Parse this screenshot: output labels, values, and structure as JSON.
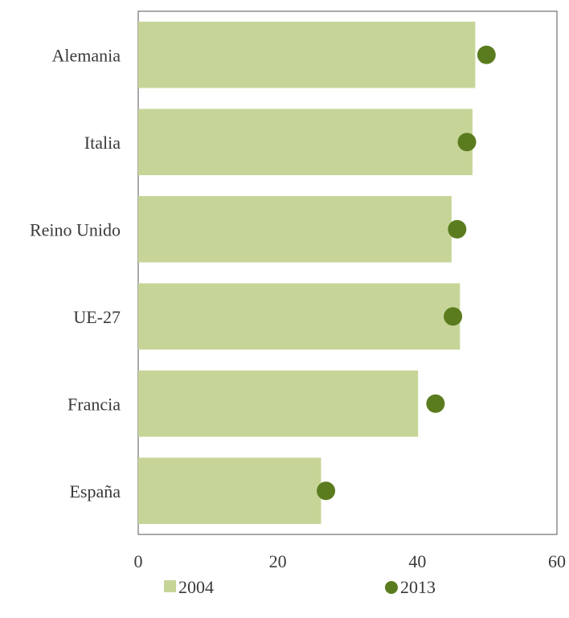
{
  "chart_data": {
    "type": "bar",
    "orientation": "horizontal",
    "categories": [
      "Alemania",
      "Italia",
      "Reino Unido",
      "UE-27",
      "Francia",
      "España"
    ],
    "series": [
      {
        "name": "2004",
        "kind": "bar",
        "values": [
          48.3,
          47.9,
          44.9,
          46.1,
          40.1,
          26.2
        ]
      },
      {
        "name": "2013",
        "kind": "dot",
        "values": [
          49.9,
          47.1,
          45.7,
          45.1,
          42.6,
          26.9
        ]
      }
    ],
    "xlim": [
      0,
      60
    ],
    "x_ticks": [
      "0",
      "20",
      "40",
      "60"
    ],
    "grid": false,
    "legend_position": "bottom",
    "colors": {
      "bar": "#c6d597",
      "dot": "#5b7c1e",
      "axis": "#555555"
    }
  }
}
